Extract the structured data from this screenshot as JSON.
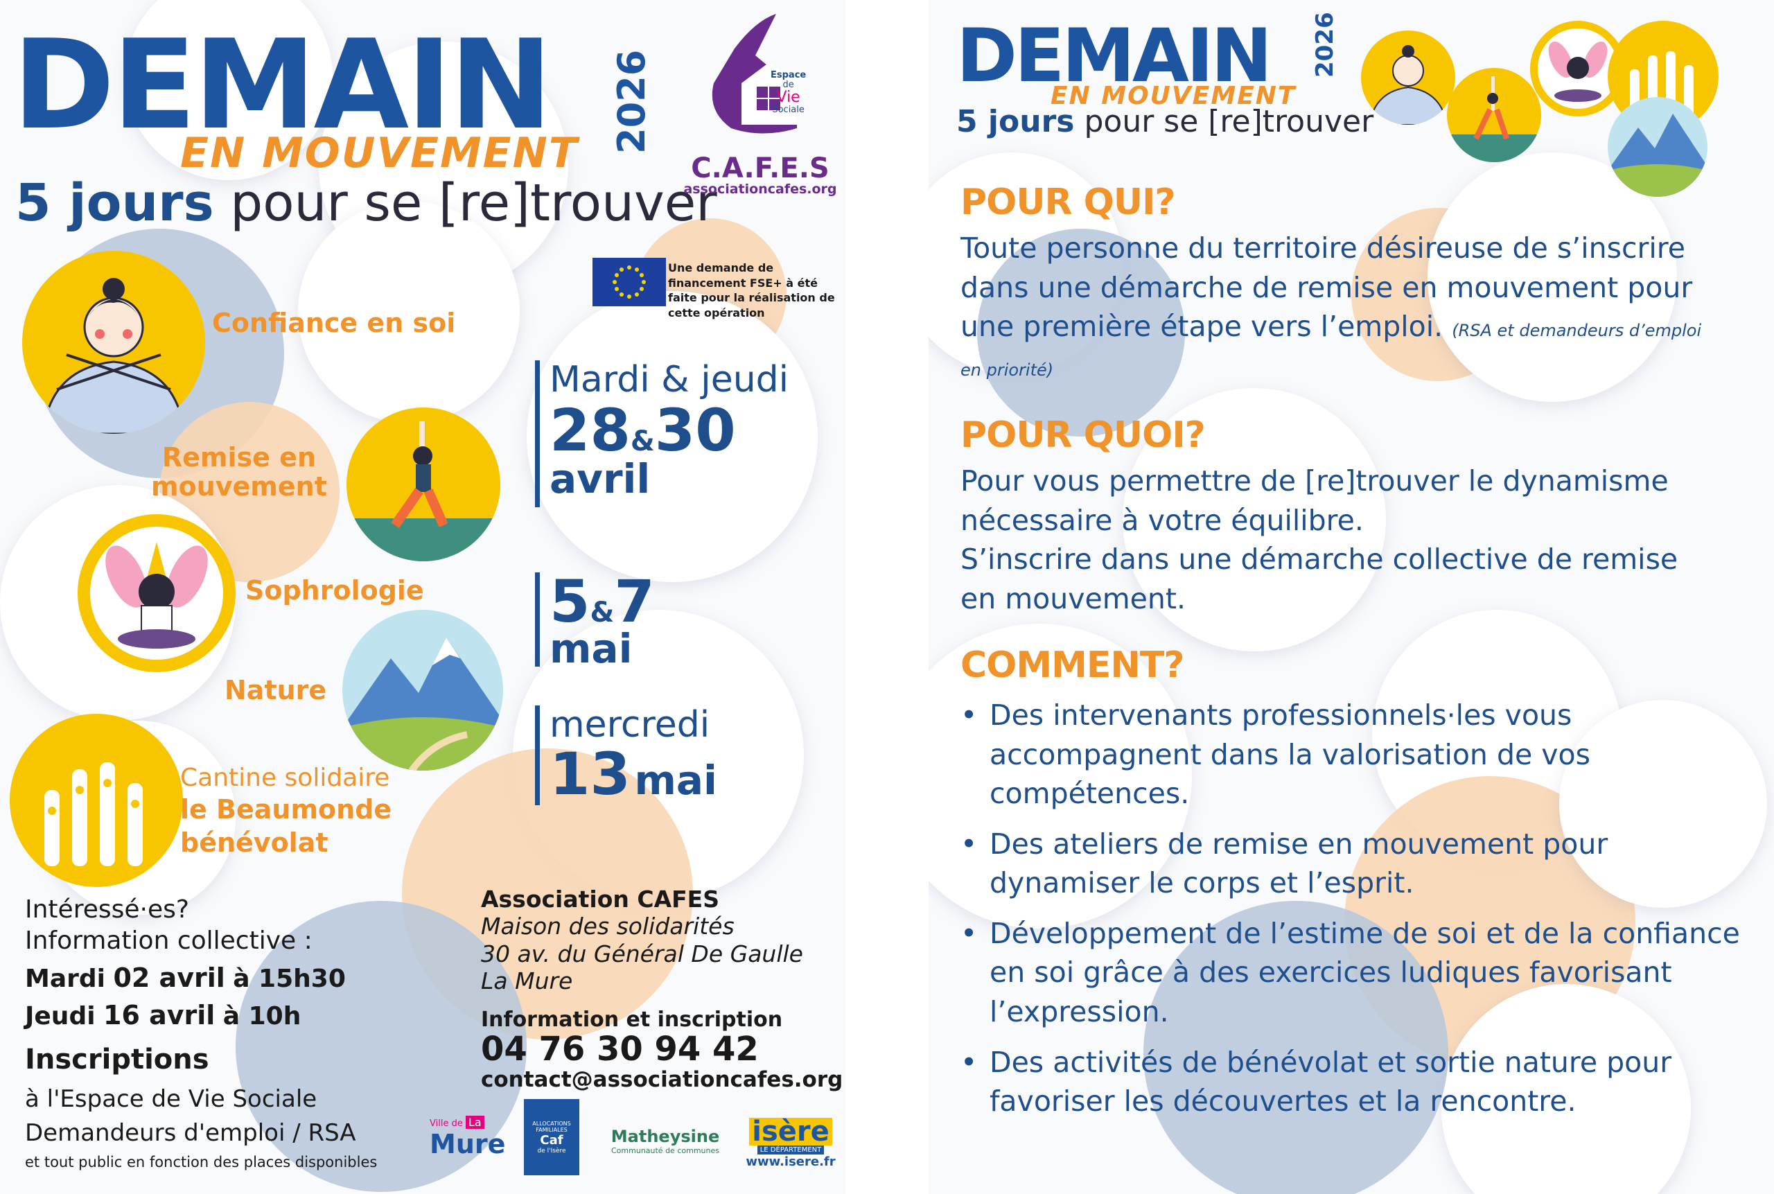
{
  "left": {
    "title": "DEMAIN",
    "year": "2026",
    "subtitle": "EN MOUVEMENT",
    "tagline_bold": "5 jours",
    "tagline_rest": "pour se [re]trouver",
    "logo": {
      "espace": "Espace",
      "de": "de",
      "vie": "Vie",
      "sociale": "Sociale",
      "name": "C.A.F.E.S",
      "site": "associationcafes.org"
    },
    "fse_note": "Une demande de financement FSE+ à été faite pour la réalisation de cette opération",
    "themes": {
      "confiance": "Confiance en soi",
      "remise1": "Remise en",
      "remise2": "mouvement",
      "sophro": "Sophrologie",
      "nature": "Nature",
      "cantine1": "Cantine solidaire",
      "cantine2": "le Beaumonde",
      "cantine3": "bénévolat"
    },
    "dates": {
      "d1_days": "Mardi & jeudi",
      "d1_n1": "28",
      "d1_amp": "&",
      "d1_n2": "30",
      "d1_month": "avril",
      "d2_n1": "5",
      "d2_amp": "&",
      "d2_n2": "7",
      "d2_month": "mai",
      "d3_day": "mercredi",
      "d3_num": "13",
      "d3_month": "mai"
    },
    "info": {
      "l1": "Intéressé·es?",
      "l2": "Information collective :",
      "mardi": "Mardi",
      "mardi_date": "02 avril",
      "mardi_time": "à 15h30",
      "jeudi": "Jeudi",
      "jeudi_date": "16 avril",
      "jeudi_time": "à 10h"
    },
    "inscriptions": {
      "heading": "Inscriptions",
      "l1": "à l'Espace de Vie Sociale",
      "l2": "Demandeurs d'emploi / RSA",
      "l3": "et tout public en fonction des places disponibles"
    },
    "address": {
      "org": "Association CAFES",
      "l1": "Maison des solidarités",
      "l2": "30 av. du Général De Gaulle",
      "l3": "La Mure",
      "info_label": "Information et inscription",
      "phone": "04 76 30 94 42",
      "email": "contact@associationcafes.org"
    },
    "partners": {
      "ville": "Ville de",
      "la": "La",
      "mure": "Mure",
      "caf1": "ALLOCATIONS FAMILIALES",
      "caf2": "Caf",
      "caf3": "de l'Isère",
      "math1": "Matheysine",
      "math2": "Communauté de communes",
      "isere1": "isère",
      "isere2": "LE DÉPARTEMENT",
      "isere3": "www.isere.fr"
    }
  },
  "right": {
    "title": "DEMAIN",
    "year": "2026",
    "subtitle": "EN MOUVEMENT",
    "tagline_bold": "5 jours",
    "tagline_rest": "pour se [re]trouver",
    "qui_h": "POUR QUI?",
    "qui_p": "Toute personne du territoire désireuse de s’inscrire dans une démarche de remise en mouvement pour une première étape vers l’emploi.",
    "qui_note": "(RSA et demandeurs d’emploi en priorité)",
    "quoi_h": "POUR QUOI?",
    "quoi_p1": "Pour vous permettre de [re]trouver le dynamisme nécessaire à votre équilibre.",
    "quoi_p2": "S’inscrire dans une démarche collective de remise en mouvement.",
    "comment_h": "COMMENT?",
    "bullets": [
      "Des intervenants professionnels·les vous accompagnent dans la valorisation de vos compétences.",
      "Des ateliers de remise en mouvement pour dynamiser le corps et l’esprit.",
      "Développement de l’estime de soi et de la confiance en soi grâce à des exercices ludiques favorisant l’expression.",
      "Des activités de bénévolat et sortie nature pour favoriser les découvertes et la rencontre."
    ]
  },
  "colors": {
    "blue": "#1e4e8c",
    "orange": "#f0932b",
    "yellow": "#f7c600",
    "purple": "#6a2c8c"
  },
  "icons": [
    "person-arms-crossed-icon",
    "yoga-pose-icon",
    "meditation-icon",
    "mountain-landscape-icon",
    "raised-hands-icon",
    "eu-flag-icon"
  ]
}
